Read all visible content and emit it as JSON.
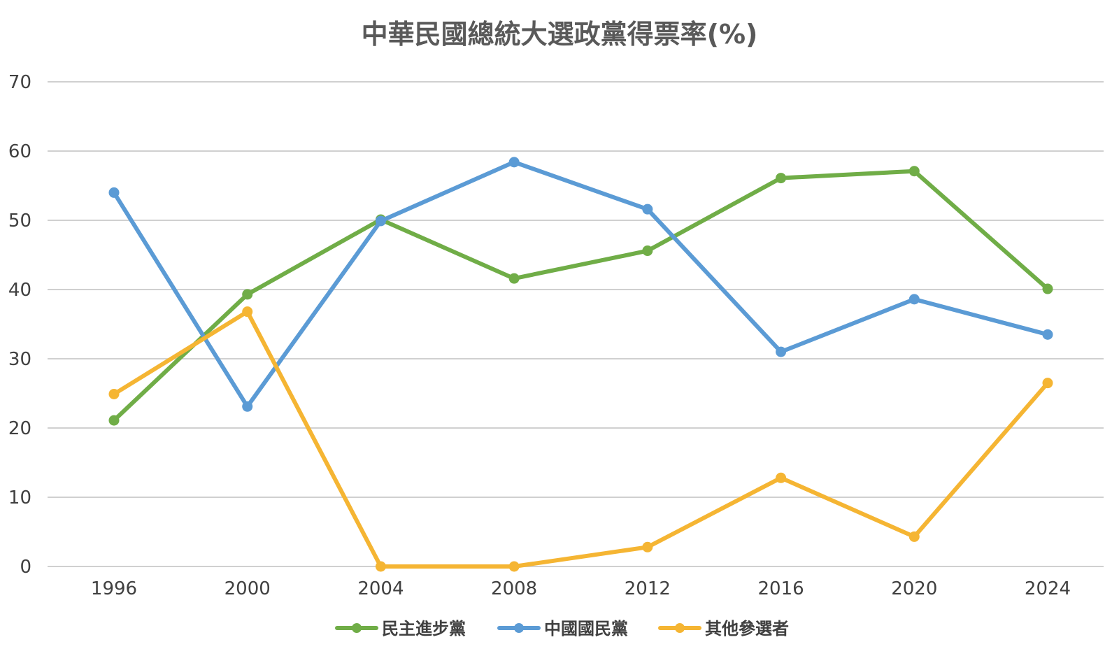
{
  "chart_data": {
    "type": "line",
    "title": "中華民國總統大選政黨得票率(%)",
    "xlabel": "",
    "ylabel": "",
    "categories": [
      "1996",
      "2000",
      "2004",
      "2008",
      "2012",
      "2016",
      "2020",
      "2024"
    ],
    "ylim": [
      0,
      70
    ],
    "yticks": [
      "0",
      "10",
      "20",
      "30",
      "40",
      "50",
      "60",
      "70"
    ],
    "grid": true,
    "legend_position": "bottom",
    "series": [
      {
        "name": "民主進步黨",
        "color": "#70ad47",
        "values": [
          21.1,
          39.3,
          50.1,
          41.6,
          45.6,
          56.1,
          57.1,
          40.1
        ]
      },
      {
        "name": "中國國民黨",
        "color": "#5b9bd5",
        "values": [
          54.0,
          23.1,
          49.9,
          58.4,
          51.6,
          31.0,
          38.6,
          33.5
        ]
      },
      {
        "name": "其他參選者",
        "color": "#f5b533",
        "values": [
          24.9,
          36.8,
          0,
          0,
          2.8,
          12.8,
          4.3,
          26.5
        ]
      }
    ]
  }
}
